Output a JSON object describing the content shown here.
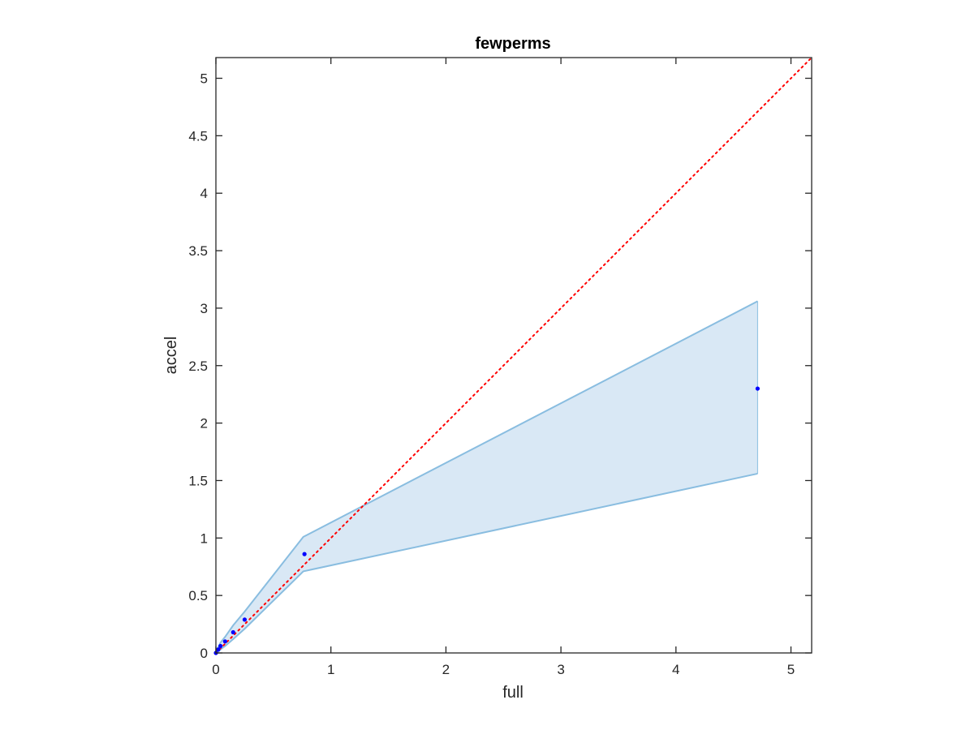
{
  "chart_data": {
    "type": "scatter",
    "title": "fewperms",
    "xlabel": "full",
    "ylabel": "accel",
    "xlim": [
      0,
      5.18
    ],
    "ylim": [
      0,
      5.18
    ],
    "xticks": [
      0,
      1,
      2,
      3,
      4,
      5
    ],
    "yticks": [
      0,
      0.5,
      1,
      1.5,
      2,
      2.5,
      3,
      3.5,
      4,
      4.5,
      5
    ],
    "xtick_labels": [
      "0",
      "1",
      "2",
      "3",
      "4",
      "5"
    ],
    "ytick_labels": [
      "0",
      "0.5",
      "1",
      "1.5",
      "2",
      "2.5",
      "3",
      "3.5",
      "4",
      "4.5",
      "5"
    ],
    "grid": false,
    "points": {
      "x": [
        0.0,
        0.02,
        0.04,
        0.08,
        0.15,
        0.25,
        0.77,
        4.71
      ],
      "y": [
        0.0,
        0.03,
        0.06,
        0.1,
        0.18,
        0.29,
        0.86,
        2.3
      ],
      "color": "#0000ff"
    },
    "band": {
      "x": [
        0.0,
        0.02,
        0.04,
        0.08,
        0.15,
        0.25,
        0.76,
        4.71
      ],
      "upper": [
        0.0,
        0.05,
        0.09,
        0.14,
        0.24,
        0.36,
        1.01,
        3.06
      ],
      "lower": [
        0.0,
        0.01,
        0.03,
        0.06,
        0.12,
        0.21,
        0.71,
        1.56
      ],
      "fill_color": "#d9e8f5",
      "edge_color": "#89bde0"
    },
    "reference_line": {
      "x": [
        0,
        5.18
      ],
      "y": [
        0,
        5.18
      ],
      "style": "dotted",
      "color": "#ff0000"
    }
  }
}
